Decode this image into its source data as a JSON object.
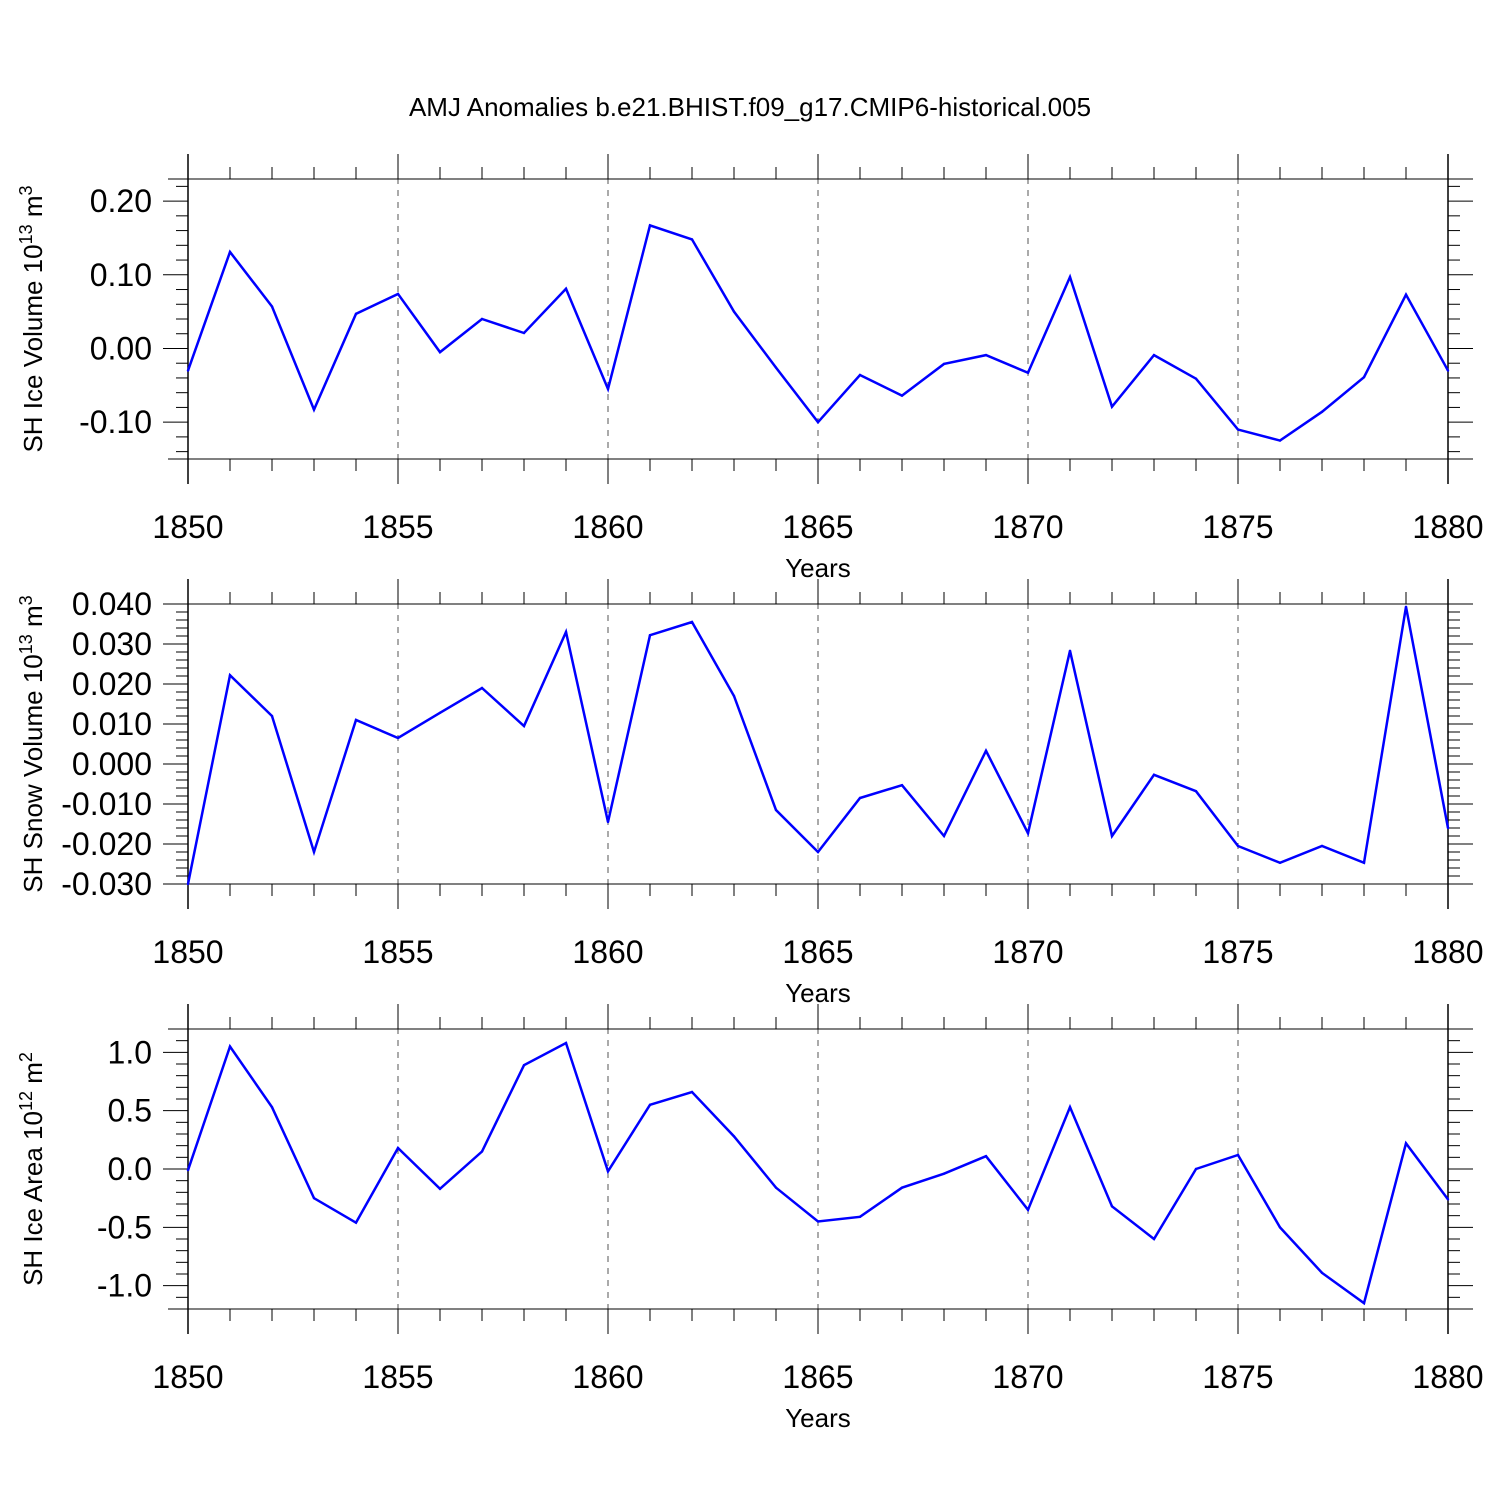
{
  "title": "AMJ Anomalies b.e21.BHIST.f09_g17.CMIP6-historical.005",
  "colors": {
    "line": "#0000ff",
    "axis": "#000000",
    "grid": "#555555",
    "background": "#ffffff"
  },
  "chart_data": [
    {
      "type": "line",
      "xlabel": "Years",
      "ylabel": {
        "main": "SH Ice Volume 10",
        "exponent": "13",
        "unit": " m",
        "unit_exponent": "3"
      },
      "xlim": [
        1850,
        1880
      ],
      "ylim": [
        -0.15,
        0.23
      ],
      "xticks": [
        "1850",
        "1855",
        "1860",
        "1865",
        "1870",
        "1875",
        "1880"
      ],
      "yticks": [
        {
          "value": 0.2,
          "label": "0.20"
        },
        {
          "value": 0.1,
          "label": "0.10"
        },
        {
          "value": 0.0,
          "label": "0.00"
        },
        {
          "value": -0.1,
          "label": "-0.10"
        }
      ],
      "ymajor_step": 0.1,
      "yminor_step": 0.02,
      "grid": "vertical dashed at major x ticks",
      "series": [
        {
          "name": "SH Ice Volume",
          "x": [
            1850,
            1851,
            1852,
            1853,
            1854,
            1855,
            1856,
            1857,
            1858,
            1859,
            1860,
            1861,
            1862,
            1863,
            1864,
            1865,
            1866,
            1867,
            1868,
            1869,
            1870,
            1871,
            1872,
            1873,
            1874,
            1875,
            1876,
            1877,
            1878,
            1879,
            1880
          ],
          "values": [
            -0.03,
            0.131,
            0.057,
            -0.083,
            0.047,
            0.074,
            -0.005,
            0.04,
            0.021,
            0.081,
            -0.055,
            0.167,
            0.148,
            0.05,
            -0.026,
            -0.1,
            -0.036,
            -0.064,
            -0.021,
            -0.009,
            -0.033,
            0.097,
            -0.079,
            -0.009,
            -0.041,
            -0.11,
            -0.125,
            -0.086,
            -0.039,
            0.073,
            -0.03
          ]
        }
      ]
    },
    {
      "type": "line",
      "xlabel": "Years",
      "ylabel": {
        "main": "SH Snow Volume 10",
        "exponent": "13",
        "unit": " m",
        "unit_exponent": "3"
      },
      "xlim": [
        1850,
        1880
      ],
      "ylim": [
        -0.03,
        0.04
      ],
      "xticks": [
        "1850",
        "1855",
        "1860",
        "1865",
        "1870",
        "1875",
        "1880"
      ],
      "yticks": [
        {
          "value": 0.04,
          "label": "0.040"
        },
        {
          "value": 0.03,
          "label": "0.030"
        },
        {
          "value": 0.02,
          "label": "0.020"
        },
        {
          "value": 0.01,
          "label": "0.010"
        },
        {
          "value": 0.0,
          "label": "0.000"
        },
        {
          "value": -0.01,
          "label": "-0.010"
        },
        {
          "value": -0.02,
          "label": "-0.020"
        },
        {
          "value": -0.03,
          "label": "-0.030"
        }
      ],
      "ymajor_step": 0.01,
      "yminor_step": 0.002,
      "grid": "vertical dashed at major x ticks",
      "series": [
        {
          "name": "SH Snow Volume",
          "x": [
            1850,
            1851,
            1852,
            1853,
            1854,
            1855,
            1856,
            1857,
            1858,
            1859,
            1860,
            1861,
            1862,
            1863,
            1864,
            1865,
            1866,
            1867,
            1868,
            1869,
            1870,
            1871,
            1872,
            1873,
            1874,
            1875,
            1876,
            1877,
            1878,
            1879,
            1880
          ],
          "values": [
            -0.03,
            0.0222,
            0.012,
            -0.022,
            0.011,
            0.0065,
            0.0128,
            0.019,
            0.0095,
            0.033,
            -0.0145,
            0.0322,
            0.0355,
            0.017,
            -0.0115,
            -0.022,
            -0.0085,
            -0.0053,
            -0.018,
            0.0033,
            -0.0173,
            0.0283,
            -0.018,
            -0.0027,
            -0.0068,
            -0.0205,
            -0.0247,
            -0.0205,
            -0.0247,
            0.0393,
            -0.016
          ]
        }
      ]
    },
    {
      "type": "line",
      "xlabel": "Years",
      "ylabel": {
        "main": "SH Ice Area 10",
        "exponent": "12",
        "unit": " m",
        "unit_exponent": "2"
      },
      "xlim": [
        1850,
        1880
      ],
      "ylim": [
        -1.2,
        1.2
      ],
      "xticks": [
        "1850",
        "1855",
        "1860",
        "1865",
        "1870",
        "1875",
        "1880"
      ],
      "yticks": [
        {
          "value": 1.0,
          "label": "1.0"
        },
        {
          "value": 0.5,
          "label": "0.5"
        },
        {
          "value": 0.0,
          "label": "0.0"
        },
        {
          "value": -0.5,
          "label": "-0.5"
        },
        {
          "value": -1.0,
          "label": "-1.0"
        }
      ],
      "ymajor_step": 0.5,
      "yminor_step": 0.1,
      "grid": "vertical dashed at major x ticks",
      "series": [
        {
          "name": "SH Ice Area",
          "x": [
            1850,
            1851,
            1852,
            1853,
            1854,
            1855,
            1856,
            1857,
            1858,
            1859,
            1860,
            1861,
            1862,
            1863,
            1864,
            1865,
            1866,
            1867,
            1868,
            1869,
            1870,
            1871,
            1872,
            1873,
            1874,
            1875,
            1876,
            1877,
            1878,
            1879,
            1880
          ],
          "values": [
            -0.01,
            1.05,
            0.53,
            -0.25,
            -0.46,
            0.18,
            -0.17,
            0.15,
            0.89,
            1.08,
            -0.02,
            0.55,
            0.66,
            0.28,
            -0.16,
            -0.45,
            -0.41,
            -0.16,
            -0.04,
            0.11,
            -0.35,
            0.53,
            -0.32,
            -0.6,
            0.0,
            0.12,
            -0.5,
            -0.89,
            -1.15,
            0.22,
            -0.26
          ]
        }
      ]
    }
  ]
}
